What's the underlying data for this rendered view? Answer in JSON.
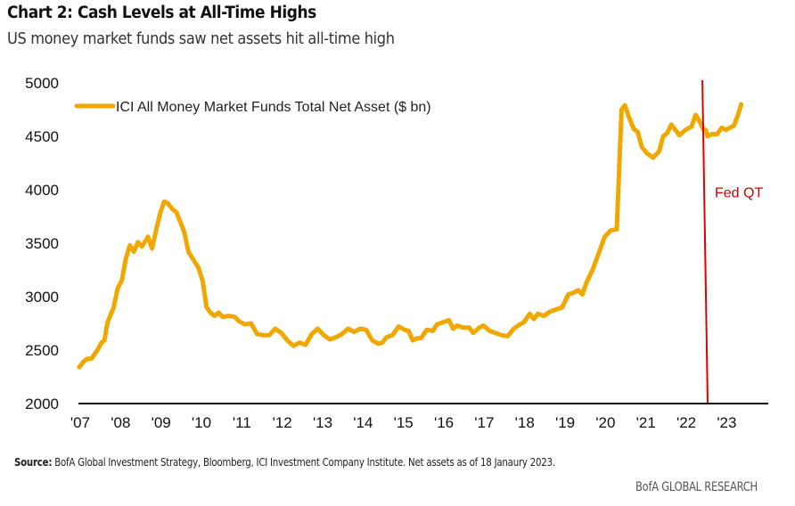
{
  "header": {
    "title": "Chart 2: Cash Levels at All-Time Highs",
    "subtitle": "US money market funds saw net assets hit all-time high"
  },
  "footer": {
    "source_label": "Source:",
    "source_text": " BofA Global Investment Strategy, Bloomberg, ICI Investment Company Institute. Net assets as of 18 Janaury 2023.",
    "brand": "BofA GLOBAL RESEARCH"
  },
  "colors": {
    "series": "#f0a800",
    "annotation": "#e00000",
    "axis": "#111111"
  },
  "chart_data": {
    "type": "line",
    "title": "Chart 2: Cash Levels at All-Time Highs",
    "subtitle": "US money market funds saw net assets hit all-time high",
    "xlabel": "",
    "ylabel": "",
    "xlim": [
      2007,
      2024.05
    ],
    "ylim": [
      2000,
      5000
    ],
    "yticks": [
      5000,
      4500,
      4000,
      3500,
      3000,
      2500,
      2000
    ],
    "xticks": [
      {
        "x": 2007,
        "label": "'07"
      },
      {
        "x": 2008,
        "label": "'08"
      },
      {
        "x": 2009,
        "label": "'09"
      },
      {
        "x": 2010,
        "label": "'10"
      },
      {
        "x": 2011,
        "label": "'11"
      },
      {
        "x": 2012,
        "label": "'12"
      },
      {
        "x": 2013,
        "label": "'13"
      },
      {
        "x": 2014,
        "label": "'14"
      },
      {
        "x": 2015,
        "label": "'15"
      },
      {
        "x": 2016,
        "label": "'16"
      },
      {
        "x": 2017,
        "label": "'17"
      },
      {
        "x": 2018,
        "label": "'18"
      },
      {
        "x": 2019,
        "label": "'19"
      },
      {
        "x": 2020,
        "label": "'20"
      },
      {
        "x": 2021,
        "label": "'21"
      },
      {
        "x": 2022,
        "label": "'22"
      },
      {
        "x": 2023,
        "label": "'23"
      }
    ],
    "grid": false,
    "legend": {
      "position": "top-left",
      "entries": [
        "ICI All Money Market Funds Total Net Asset ($ bn)"
      ]
    },
    "series": [
      {
        "name": "ICI All Money Market Funds Total Net Asset ($ bn)",
        "points": [
          [
            2007.0,
            2340
          ],
          [
            2007.1,
            2390
          ],
          [
            2007.2,
            2420
          ],
          [
            2007.3,
            2420
          ],
          [
            2007.45,
            2500
          ],
          [
            2007.55,
            2570
          ],
          [
            2007.62,
            2590
          ],
          [
            2007.7,
            2760
          ],
          [
            2007.85,
            2900
          ],
          [
            2007.95,
            3080
          ],
          [
            2008.05,
            3150
          ],
          [
            2008.15,
            3350
          ],
          [
            2008.25,
            3480
          ],
          [
            2008.35,
            3420
          ],
          [
            2008.45,
            3510
          ],
          [
            2008.55,
            3470
          ],
          [
            2008.7,
            3560
          ],
          [
            2008.8,
            3450
          ],
          [
            2008.9,
            3620
          ],
          [
            2009.0,
            3780
          ],
          [
            2009.1,
            3890
          ],
          [
            2009.2,
            3870
          ],
          [
            2009.3,
            3820
          ],
          [
            2009.4,
            3790
          ],
          [
            2009.5,
            3700
          ],
          [
            2009.6,
            3600
          ],
          [
            2009.7,
            3420
          ],
          [
            2009.85,
            3330
          ],
          [
            2009.95,
            3270
          ],
          [
            2010.05,
            3150
          ],
          [
            2010.15,
            2900
          ],
          [
            2010.25,
            2850
          ],
          [
            2010.35,
            2820
          ],
          [
            2010.45,
            2850
          ],
          [
            2010.55,
            2810
          ],
          [
            2010.7,
            2820
          ],
          [
            2010.85,
            2810
          ],
          [
            2010.95,
            2770
          ],
          [
            2011.1,
            2740
          ],
          [
            2011.25,
            2750
          ],
          [
            2011.4,
            2650
          ],
          [
            2011.55,
            2640
          ],
          [
            2011.7,
            2640
          ],
          [
            2011.85,
            2700
          ],
          [
            2012.0,
            2660
          ],
          [
            2012.15,
            2590
          ],
          [
            2012.3,
            2540
          ],
          [
            2012.45,
            2570
          ],
          [
            2012.6,
            2550
          ],
          [
            2012.75,
            2650
          ],
          [
            2012.9,
            2700
          ],
          [
            2013.05,
            2640
          ],
          [
            2013.2,
            2600
          ],
          [
            2013.35,
            2620
          ],
          [
            2013.5,
            2650
          ],
          [
            2013.65,
            2700
          ],
          [
            2013.8,
            2670
          ],
          [
            2013.95,
            2700
          ],
          [
            2014.1,
            2690
          ],
          [
            2014.25,
            2590
          ],
          [
            2014.4,
            2560
          ],
          [
            2014.5,
            2570
          ],
          [
            2014.6,
            2620
          ],
          [
            2014.75,
            2640
          ],
          [
            2014.9,
            2720
          ],
          [
            2015.05,
            2690
          ],
          [
            2015.15,
            2680
          ],
          [
            2015.25,
            2590
          ],
          [
            2015.35,
            2610
          ],
          [
            2015.45,
            2610
          ],
          [
            2015.6,
            2690
          ],
          [
            2015.75,
            2680
          ],
          [
            2015.85,
            2740
          ],
          [
            2016.0,
            2760
          ],
          [
            2016.15,
            2780
          ],
          [
            2016.25,
            2700
          ],
          [
            2016.35,
            2730
          ],
          [
            2016.5,
            2710
          ],
          [
            2016.65,
            2710
          ],
          [
            2016.75,
            2660
          ],
          [
            2016.9,
            2710
          ],
          [
            2017.0,
            2730
          ],
          [
            2017.15,
            2680
          ],
          [
            2017.3,
            2660
          ],
          [
            2017.45,
            2640
          ],
          [
            2017.6,
            2630
          ],
          [
            2017.75,
            2700
          ],
          [
            2017.9,
            2740
          ],
          [
            2018.0,
            2760
          ],
          [
            2018.15,
            2840
          ],
          [
            2018.25,
            2790
          ],
          [
            2018.35,
            2840
          ],
          [
            2018.5,
            2820
          ],
          [
            2018.65,
            2860
          ],
          [
            2018.8,
            2880
          ],
          [
            2018.95,
            2900
          ],
          [
            2019.1,
            3020
          ],
          [
            2019.25,
            3040
          ],
          [
            2019.35,
            3060
          ],
          [
            2019.45,
            3020
          ],
          [
            2019.55,
            3130
          ],
          [
            2019.7,
            3250
          ],
          [
            2019.85,
            3400
          ],
          [
            2020.0,
            3560
          ],
          [
            2020.15,
            3620
          ],
          [
            2020.3,
            3630
          ],
          [
            2020.42,
            4750
          ],
          [
            2020.5,
            4790
          ],
          [
            2020.6,
            4680
          ],
          [
            2020.72,
            4570
          ],
          [
            2020.82,
            4540
          ],
          [
            2020.92,
            4400
          ],
          [
            2021.05,
            4340
          ],
          [
            2021.2,
            4300
          ],
          [
            2021.35,
            4360
          ],
          [
            2021.45,
            4500
          ],
          [
            2021.55,
            4530
          ],
          [
            2021.65,
            4610
          ],
          [
            2021.75,
            4560
          ],
          [
            2021.85,
            4510
          ],
          [
            2022.0,
            4560
          ],
          [
            2022.15,
            4590
          ],
          [
            2022.25,
            4700
          ],
          [
            2022.35,
            4640
          ],
          [
            2022.45,
            4560
          ],
          [
            2022.5,
            4560
          ],
          [
            2022.55,
            4500
          ],
          [
            2022.65,
            4520
          ],
          [
            2022.78,
            4520
          ],
          [
            2022.9,
            4580
          ],
          [
            2023.0,
            4560
          ],
          [
            2023.1,
            4580
          ],
          [
            2023.2,
            4600
          ],
          [
            2023.3,
            4700
          ],
          [
            2023.38,
            4800
          ]
        ]
      }
    ],
    "annotations": [
      {
        "type": "vline",
        "x_top": 2022.42,
        "x_bottom": 2022.55,
        "label": "Fed QT",
        "label_value": 3930
      }
    ]
  }
}
